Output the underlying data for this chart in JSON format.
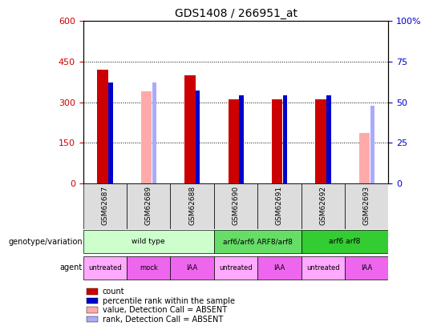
{
  "title": "GDS1408 / 266951_at",
  "samples": [
    "GSM62687",
    "GSM62689",
    "GSM62688",
    "GSM62690",
    "GSM62691",
    "GSM62692",
    "GSM62693"
  ],
  "count_values": [
    420,
    null,
    400,
    310,
    310,
    310,
    null
  ],
  "percentile_values": [
    62,
    null,
    57,
    54,
    54,
    54,
    null
  ],
  "absent_count_values": [
    null,
    340,
    null,
    null,
    null,
    null,
    185
  ],
  "absent_rank_values": [
    null,
    62,
    null,
    null,
    null,
    null,
    48
  ],
  "ylim_left": [
    0,
    600
  ],
  "ylim_right": [
    0,
    100
  ],
  "yticks_left": [
    0,
    150,
    300,
    450,
    600
  ],
  "ytick_labels_left": [
    "0",
    "150",
    "300",
    "450",
    "600"
  ],
  "yticks_right": [
    0,
    25,
    50,
    75,
    100
  ],
  "ytick_labels_right": [
    "0",
    "25",
    "50",
    "75",
    "100%"
  ],
  "count_color": "#cc0000",
  "percentile_color": "#0000cc",
  "absent_count_color": "#ffaaaa",
  "absent_rank_color": "#aaaaff",
  "genotype_groups": [
    {
      "label": "wild type",
      "cols": [
        0,
        1,
        2
      ],
      "color": "#ccffcc"
    },
    {
      "label": "arf6/arf6 ARF8/arf8",
      "cols": [
        3,
        4
      ],
      "color": "#66dd66"
    },
    {
      "label": "arf6 arf8",
      "cols": [
        5,
        6
      ],
      "color": "#33cc33"
    }
  ],
  "agent_colors": [
    "#ffaaff",
    "#ee66ee",
    "#ee66ee",
    "#ffaaff",
    "#ee66ee",
    "#ffaaff",
    "#ee66ee"
  ],
  "agent_labels": [
    "untreated",
    "mock",
    "IAA",
    "untreated",
    "IAA",
    "untreated",
    "IAA"
  ],
  "background_color": "#ffffff",
  "left_label_color": "#cc0000",
  "right_label_color": "#0000cc"
}
